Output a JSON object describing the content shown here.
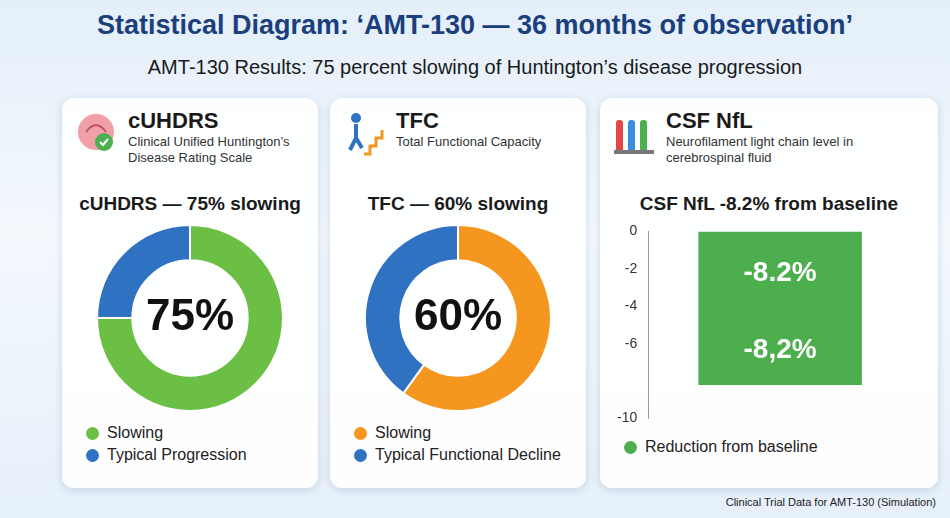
{
  "header": {
    "title": "Statistical Diagram: ‘AMT-130 — 36 months of observation’",
    "subtitle": "AMT-130 Results: 75 percent slowing of Huntington’s disease progression"
  },
  "chart_data": [
    {
      "type": "doughnut",
      "panel_title": "cUHDRS",
      "panel_subtitle": "Clinical Unified Huntington’s Disease Rating Scale",
      "title": "cUHDRS — 75% slowing",
      "categories": [
        "Slowing",
        "Typical Progression"
      ],
      "values": [
        75,
        25
      ],
      "colors": [
        "#6cbf45",
        "#2f72c2"
      ],
      "data_labels": true,
      "value_labels": [
        "75%",
        null
      ],
      "legend": "bottom"
    },
    {
      "type": "doughnut",
      "panel_title": "TFC",
      "panel_subtitle": "Total Functional Capacity",
      "title": "TFC — 60% slowing",
      "categories": [
        "Slowing",
        "Typical Functional Decline"
      ],
      "values": [
        60,
        40
      ],
      "colors": [
        "#f5961f",
        "#2f72c2"
      ],
      "data_labels": true,
      "value_labels": [
        "60%",
        null
      ],
      "legend": "bottom"
    },
    {
      "type": "bar",
      "panel_title": "CSF NfL",
      "panel_subtitle": "Neurofilament light chain level in cerebrospinal fluid",
      "title": "CSF NfL -8.2% from baseline",
      "categories": [
        null
      ],
      "series": [
        {
          "name": "Reduction from baseline",
          "color": "#4cae4c",
          "values": [
            -8.2
          ]
        }
      ],
      "ylim": [
        -10,
        0
      ],
      "yticks": [
        0,
        -2,
        -4,
        -6,
        -10
      ],
      "grid": false,
      "tick_labels": "y",
      "data_labels": true,
      "value_labels": [
        [
          "-8.2%",
          "-8,2%"
        ]
      ],
      "legend": "bottom"
    }
  ],
  "footer": "Clinical Trial Data for AMT-130 (Simulation)"
}
